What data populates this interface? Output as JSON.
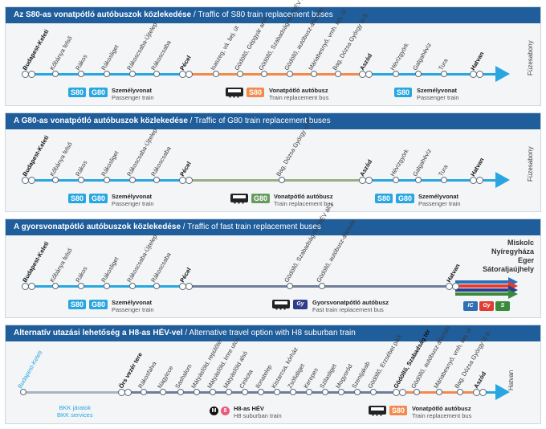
{
  "colors": {
    "header": "#1f5d9b",
    "train": "#29a6e0",
    "bus_orange": "#f28a4b",
    "bus_green": "#9aab85",
    "fast_bus": "#6f7d9a",
    "gray_line": "#aab4bf",
    "badge_blue": "#29a6e0",
    "badge_orange": "#f28a4b",
    "badge_green": "#6a9b5e",
    "red": "#e03c31",
    "green": "#3a8a3e",
    "dark_blue": "#2f3d8a"
  },
  "panel1": {
    "title_bold": "Az S80-as vonatpótló autóbuszok közlekedése",
    "title_rest": " / Traffic of S80 train replacement buses",
    "stations": [
      "Budapest-Keleti",
      "Kőbánya felső",
      "Rákos",
      "Rákosliget",
      "Rákoscsaba-Újtelep",
      "Rákoscsaba",
      "Pécel",
      "Isaszeg, vá. bej. út",
      "Gödöllő, Gépgyár amh.",
      "Gödöllő, Szabadság tér (HÉV áll.)",
      "Gödöllő, autóbusz-állomás",
      "Máriabesnyő, vmh. bej. út",
      "Bag, Dózsa György út 8.",
      "Aszód",
      "Hévízgyörk",
      "Galgahévíz",
      "Tura",
      "Hatvan"
    ],
    "dest": "Füzesabony",
    "legend": {
      "train_badges": [
        "S80",
        "G80"
      ],
      "train_hu": "Személyvonat",
      "train_en": "Passenger train",
      "bus_badge": "S80",
      "bus_hu": "Vonatpótló autóbusz",
      "bus_en": "Train replacement bus",
      "train2_badge": "S80",
      "train2_hu": "Személyvonat",
      "train2_en": "Passenger train"
    }
  },
  "panel2": {
    "title_bold": "A  G80-as vonatpótló autóbuszok közlekedése",
    "title_rest": " / Traffic of G80 train replacement buses",
    "stations": [
      "Budapest-Keleti",
      "Kőbánya felső",
      "Rákos",
      "Rákosliget",
      "Rákoscsaba-Újtelep",
      "Rákoscsaba",
      "Pécel",
      "Bag, Dózsa György út 8.",
      "Aszód",
      "Hévízgyörk",
      "Galgahévíz",
      "Tura",
      "Hatvan"
    ],
    "dest": "Füzesabony",
    "legend": {
      "train_badges": [
        "S80",
        "G80"
      ],
      "train_hu": "Személyvonat",
      "train_en": "Passenger train",
      "bus_badge": "G80",
      "bus_hu": "Vonatpótló autóbusz",
      "bus_en": "Train replacement bus",
      "train2_badges": [
        "S80",
        "G80"
      ],
      "train2_hu": "Személyvonat",
      "train2_en": "Passenger train"
    }
  },
  "panel3": {
    "title_bold": "A gyorsvonatpótló autóbuszok közlekedése",
    "title_rest": " / Traffic of fast train replacement buses",
    "stations": [
      "Budapest-Keleti",
      "Kőbánya felső",
      "Rákos",
      "Rákosliget",
      "Rákoscsaba-Újtelep",
      "Rákoscsaba",
      "Pécel",
      "Gödöllő, Szabadság tér (HÉV áll.)",
      "Gödöllő, autóbusz-állomás",
      "Hatvan"
    ],
    "cities": [
      "Miskolc",
      "Nyíregyháza",
      "Eger",
      "Sátoraljaújhely"
    ],
    "legend": {
      "train_badges": [
        "S80",
        "G80"
      ],
      "train_hu": "Személyvonat",
      "train_en": "Passenger train",
      "bus_badge": "Gy",
      "bus_hu": "Gyorsvonatpótló autóbusz",
      "bus_en": "Fast train replacement bus",
      "fast_badges": [
        "IC",
        "Gy",
        "S"
      ]
    }
  },
  "panel4": {
    "title_bold": "Alternatív utazási lehetőség a H8-as HÉV-vel",
    "title_rest": " / Alternative travel option with H8 suburban train",
    "stations": [
      "Budapest-Keleti",
      "Örs vezér tere",
      "Rákosfalva",
      "Nagyicce",
      "Sashalom",
      "Mátyásföld, repülőtér",
      "Mátyásföld, Imre utca",
      "Mátyásföld alsó",
      "Cinkota",
      "Ilonatelep",
      "Kistarcsa, kórház",
      "Zsófialiget",
      "Kerepes",
      "Szilasliget",
      "Mogyoród",
      "Szentjakab",
      "Gödöllő, Erzsébet park",
      "Gödöllő, Szabadság tér",
      "Gödöllő, autóbusz-állomás",
      "Máriabesnyő, vmh. bej. út",
      "Bag, Dózsa György út 8.",
      "Aszód"
    ],
    "dest": "Hatvan",
    "legend": {
      "bkk_hu": "BKK járatok",
      "bkk_en": "BKK services",
      "hev_m": "M",
      "hev_h": "8",
      "hev_hu": "H8-as HÉV",
      "hev_en": "H8 suburban train",
      "bus_badge": "S80",
      "bus_hu": "Vonatpótló autóbusz",
      "bus_en": "Train replacement bus"
    }
  }
}
